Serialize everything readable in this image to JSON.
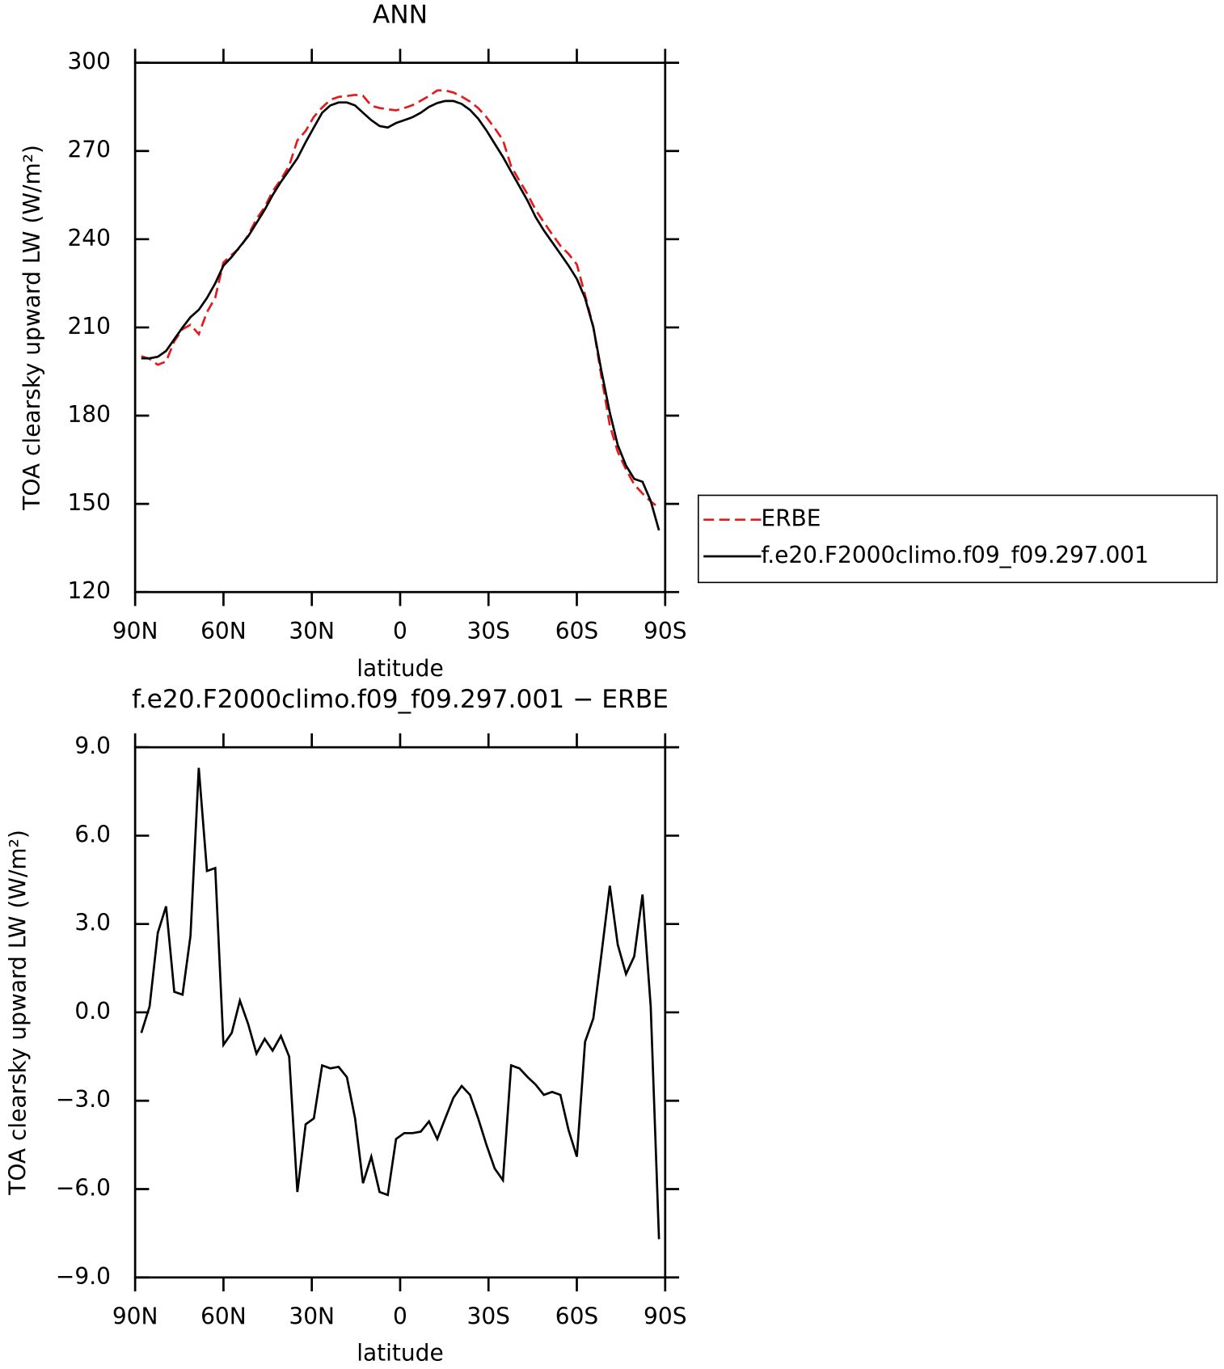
{
  "chart_data": [
    {
      "type": "line",
      "title": "ANN",
      "xlabel": "latitude",
      "ylabel": "TOA clearsky upward LW (W/m²)",
      "x": [
        87.9,
        85.1,
        82.3,
        79.5,
        76.7,
        73.9,
        71.2,
        68.4,
        65.6,
        62.8,
        60.0,
        57.2,
        54.4,
        51.6,
        48.8,
        46.0,
        43.3,
        40.5,
        37.7,
        34.9,
        32.1,
        29.3,
        26.5,
        23.7,
        20.9,
        18.1,
        15.3,
        12.6,
        9.8,
        7.0,
        4.2,
        1.4,
        -1.4,
        -4.2,
        -7.0,
        -9.8,
        -12.6,
        -15.3,
        -18.1,
        -20.9,
        -23.7,
        -26.5,
        -29.3,
        -32.1,
        -34.9,
        -37.7,
        -40.5,
        -43.3,
        -46.0,
        -48.8,
        -51.6,
        -54.4,
        -57.2,
        -60.0,
        -62.8,
        -65.6,
        -68.4,
        -71.2,
        -73.9,
        -76.7,
        -79.5,
        -82.3,
        -85.1,
        -87.9
      ],
      "series": [
        {
          "name": "ERBE",
          "color": "#e41a1c",
          "linestyle": "dashed",
          "values": [
            200.2,
            199.3,
            197.3,
            198.4,
            205.3,
            209.4,
            210.9,
            207.7,
            215.2,
            220.1,
            232.1,
            234.7,
            237.1,
            241.4,
            246.9,
            250.9,
            256.3,
            260.3,
            265.0,
            273.6,
            276.8,
            281.6,
            284.8,
            287.4,
            288.4,
            288.7,
            289.1,
            288.8,
            285.4,
            284.6,
            284.2,
            283.8,
            284.6,
            285.6,
            287.1,
            288.7,
            290.6,
            290.6,
            289.9,
            288.5,
            286.8,
            284.6,
            281.5,
            277.8,
            273.7,
            264.8,
            259.9,
            255.2,
            250.0,
            245.8,
            241.7,
            237.8,
            235.0,
            231.4,
            221.0,
            210.2,
            193.0,
            176.7,
            167.7,
            161.7,
            156.6,
            153.5,
            150.8,
            148.7
          ]
        },
        {
          "name": "f.e20.F2000climo.f09_f09.297.001",
          "color": "#000000",
          "linestyle": "solid",
          "values": [
            199.5,
            199.5,
            200.0,
            202.0,
            206.0,
            210.0,
            213.5,
            216.0,
            220.0,
            225.0,
            231.0,
            234.0,
            237.5,
            241.0,
            245.5,
            250.0,
            255.0,
            259.5,
            263.5,
            267.5,
            273.0,
            278.0,
            283.0,
            285.5,
            286.5,
            286.5,
            285.5,
            283.0,
            280.5,
            278.5,
            278.0,
            279.5,
            280.5,
            281.5,
            283.0,
            285.0,
            286.3,
            287.0,
            287.0,
            286.0,
            284.0,
            281.0,
            277.0,
            272.5,
            268.0,
            263.0,
            258.0,
            253.0,
            247.5,
            243.0,
            239.0,
            235.0,
            231.0,
            226.5,
            220.0,
            210.0,
            195.0,
            181.0,
            170.0,
            163.0,
            158.5,
            157.5,
            151.0,
            141.0
          ]
        }
      ],
      "xlim": [
        90,
        -90
      ],
      "xticks": [
        {
          "value": 90,
          "label": "90N"
        },
        {
          "value": 60,
          "label": "60N"
        },
        {
          "value": 30,
          "label": "30N"
        },
        0,
        {
          "value": -30,
          "label": "30S"
        },
        {
          "value": -60,
          "label": "60S"
        },
        {
          "value": -90,
          "label": "90S"
        }
      ],
      "ylim": [
        120,
        300
      ],
      "yticks": [
        120,
        150,
        180,
        210,
        240,
        270,
        300
      ],
      "legend": "right"
    },
    {
      "type": "line",
      "title": "f.e20.F2000climo.f09_f09.297.001 − ERBE",
      "xlabel": "latitude",
      "ylabel": "TOA clearsky upward LW (W/m²)",
      "x": [
        87.9,
        85.1,
        82.3,
        79.5,
        76.7,
        73.9,
        71.2,
        68.4,
        65.6,
        62.8,
        60.0,
        57.2,
        54.4,
        51.6,
        48.8,
        46.0,
        43.3,
        40.5,
        37.7,
        34.9,
        32.1,
        29.3,
        26.5,
        23.7,
        20.9,
        18.1,
        15.3,
        12.6,
        9.8,
        7.0,
        4.2,
        1.4,
        -1.4,
        -4.2,
        -7.0,
        -9.8,
        -12.6,
        -15.3,
        -18.1,
        -20.9,
        -23.7,
        -26.5,
        -29.3,
        -32.1,
        -34.9,
        -37.7,
        -40.5,
        -43.3,
        -46.0,
        -48.8,
        -51.6,
        -54.4,
        -57.2,
        -60.0,
        -62.8,
        -65.6,
        -68.4,
        -71.2,
        -73.9,
        -76.7,
        -79.5,
        -82.3,
        -85.1,
        -87.9
      ],
      "color": "#000000",
      "values": [
        -0.7,
        0.2,
        2.7,
        3.6,
        0.7,
        0.6,
        2.6,
        8.3,
        4.8,
        4.9,
        -1.1,
        -0.7,
        0.4,
        -0.4,
        -1.4,
        -0.9,
        -1.3,
        -0.8,
        -1.5,
        -6.1,
        -3.8,
        -3.6,
        -1.8,
        -1.9,
        -1.85,
        -2.2,
        -3.6,
        -5.8,
        -4.9,
        -6.1,
        -6.2,
        -4.3,
        -4.1,
        -4.1,
        -4.05,
        -3.7,
        -4.3,
        -3.6,
        -2.9,
        -2.5,
        -2.8,
        -3.6,
        -4.5,
        -5.3,
        -5.7,
        -1.8,
        -1.9,
        -2.2,
        -2.45,
        -2.8,
        -2.7,
        -2.8,
        -4.0,
        -4.9,
        -1.0,
        -0.2,
        2.0,
        4.3,
        2.3,
        1.3,
        1.9,
        4.0,
        0.2,
        -7.7
      ],
      "xlim": [
        90,
        -90
      ],
      "xticks": [
        {
          "value": 90,
          "label": "90N"
        },
        {
          "value": 60,
          "label": "60N"
        },
        {
          "value": 30,
          "label": "30N"
        },
        0,
        {
          "value": -30,
          "label": "30S"
        },
        {
          "value": -60,
          "label": "60S"
        },
        {
          "value": -90,
          "label": "90S"
        }
      ],
      "ylim": [
        -9,
        9
      ],
      "yticks": [
        {
          "value": -9,
          "label": "−9.0"
        },
        {
          "value": -6,
          "label": "−6.0"
        },
        {
          "value": -3,
          "label": "−3.0"
        },
        {
          "value": 0,
          "label": "0.0"
        },
        {
          "value": 3,
          "label": "3.0"
        },
        {
          "value": 6,
          "label": "6.0"
        },
        {
          "value": 9,
          "label": "9.0"
        }
      ]
    }
  ]
}
